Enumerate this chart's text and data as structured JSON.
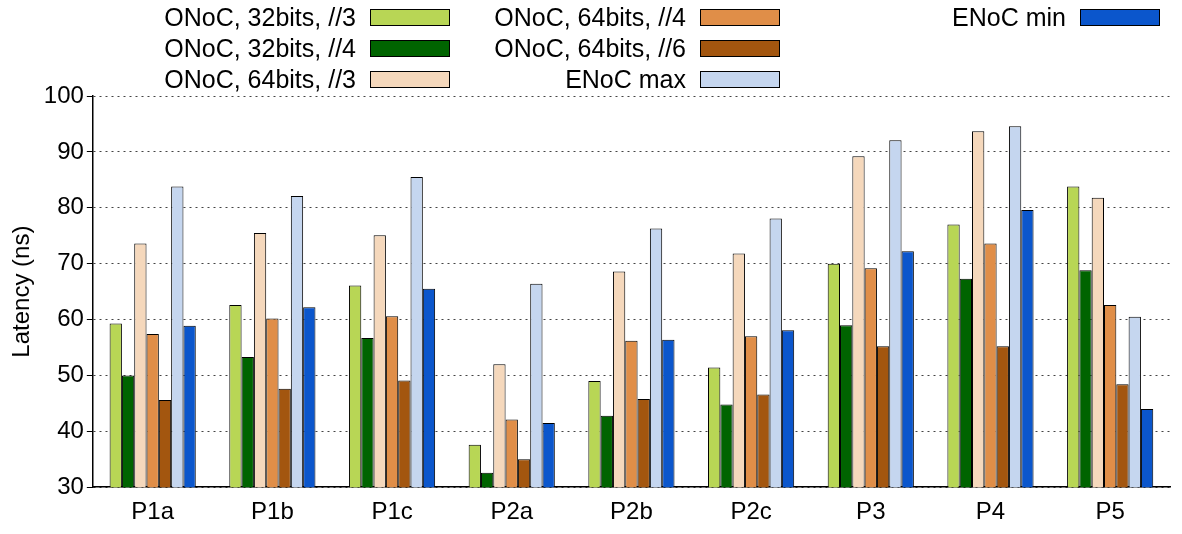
{
  "chart_data": {
    "type": "bar",
    "ylabel": "Latency (ns)",
    "categories": [
      "P1a",
      "P1b",
      "P1c",
      "P2a",
      "P2b",
      "P2c",
      "P3",
      "P4",
      "P5"
    ],
    "series": [
      {
        "name": "ONoC, 32bits, //3",
        "color": "#b8d655",
        "values": [
          59.3,
          62.6,
          66.1,
          37.6,
          49,
          51.4,
          70,
          77,
          83.8
        ]
      },
      {
        "name": "ONoC, 32bits, //4",
        "color": "#006400",
        "values": [
          50,
          53.3,
          56.7,
          32.6,
          42.8,
          44.8,
          59,
          67.3,
          68.8
        ]
      },
      {
        "name": "ONoC, 64bits, //3",
        "color": "#f5d8bc",
        "values": [
          73.6,
          75.5,
          75.1,
          52,
          68.6,
          71.8,
          89.2,
          93.7,
          81.8
        ]
      },
      {
        "name": "ONoC, 64bits, //4",
        "color": "#e08e48",
        "values": [
          57.4,
          60.2,
          60.6,
          42.1,
          56.2,
          57,
          69.2,
          73.6,
          62.6
        ]
      },
      {
        "name": "ONoC, 64bits, //6",
        "color": "#a3560f",
        "values": [
          45.6,
          47.6,
          49.1,
          35,
          45.8,
          46.6,
          55.2,
          55.2,
          48.4
        ]
      },
      {
        "name": "ENoC max",
        "color": "#c5d6ef",
        "values": [
          83.8,
          82.1,
          85.5,
          66.4,
          76.3,
          78.1,
          92.1,
          94.6,
          60.5
        ]
      },
      {
        "name": "ENoC min",
        "color": "#0b56cc",
        "values": [
          58.9,
          62.2,
          65.5,
          41.5,
          56.4,
          58.1,
          72.2,
          79.6,
          44
        ]
      }
    ],
    "ylim": [
      30,
      100
    ],
    "yticks": [
      30,
      40,
      50,
      60,
      70,
      80,
      90,
      100
    ],
    "grid": "y",
    "legend": "top"
  }
}
